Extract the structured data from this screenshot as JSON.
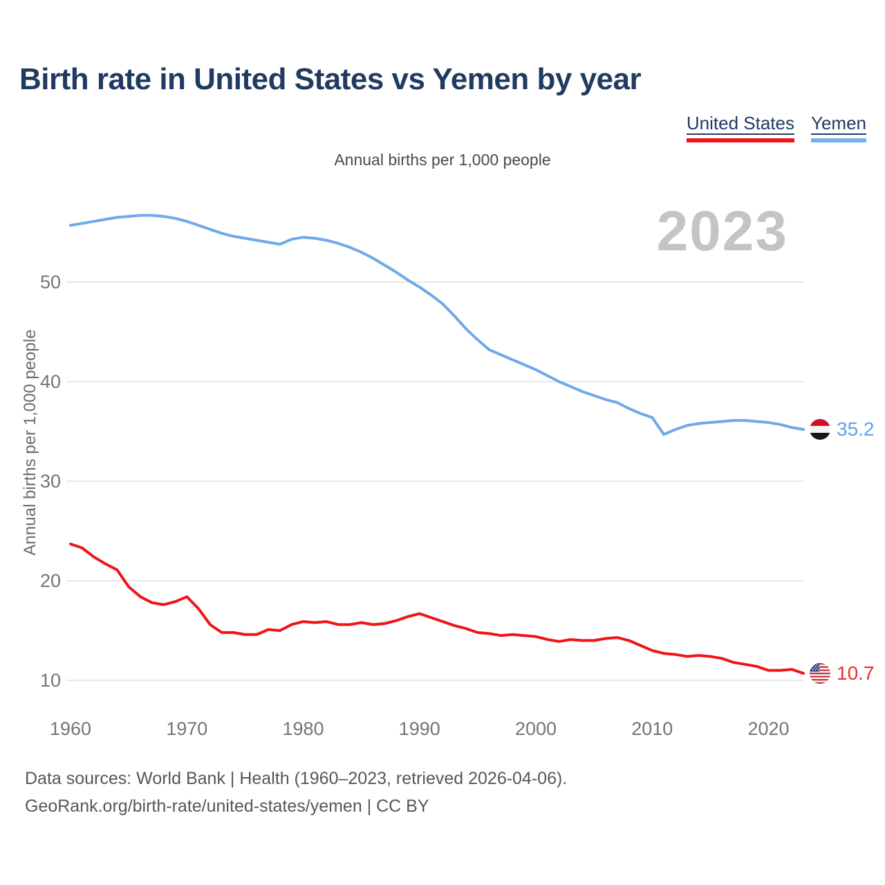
{
  "page": {
    "title": "Birth rate in United States vs Yemen by year",
    "subtitle": "Annual births per 1,000 people",
    "watermark": "2023"
  },
  "legend": {
    "items": [
      {
        "label": "United States",
        "color": "#f01418"
      },
      {
        "label": "Yemen",
        "color": "#74b2ea"
      }
    ]
  },
  "axes": {
    "y_label": "Annual births per 1,000 people",
    "y_ticks": [
      10,
      20,
      30,
      40,
      50
    ],
    "x_ticks": [
      1960,
      1970,
      1980,
      1990,
      2000,
      2010,
      2020
    ]
  },
  "end_labels": [
    {
      "series": "Yemen",
      "flag": "yemen-flag",
      "value": "35.2",
      "color": "#5fa1e6"
    },
    {
      "series": "United States",
      "flag": "us-flag",
      "value": "10.7",
      "color": "#ee2b2b"
    }
  ],
  "footer": {
    "line1": "Data sources: World Bank | Health (1960–2023, retrieved 2026-04-06).",
    "line2": "GeoRank.org/birth-rate/united-states/yemen | CC BY"
  },
  "chart_data": {
    "type": "line",
    "title": "Birth rate in United States vs Yemen by year",
    "subtitle": "Annual births per 1,000 people",
    "ylabel": "Annual births per 1,000 people",
    "xlim": [
      1960,
      2023
    ],
    "ylim": [
      10,
      50
    ],
    "grid": "horizontal",
    "legend_position": "top-right",
    "x": [
      1960,
      1961,
      1962,
      1963,
      1964,
      1965,
      1966,
      1967,
      1968,
      1969,
      1970,
      1971,
      1972,
      1973,
      1974,
      1975,
      1976,
      1977,
      1978,
      1979,
      1980,
      1981,
      1982,
      1983,
      1984,
      1985,
      1986,
      1987,
      1988,
      1989,
      1990,
      1991,
      1992,
      1993,
      1994,
      1995,
      1996,
      1997,
      1998,
      1999,
      2000,
      2001,
      2002,
      2003,
      2004,
      2005,
      2006,
      2007,
      2008,
      2009,
      2010,
      2011,
      2012,
      2013,
      2014,
      2015,
      2016,
      2017,
      2018,
      2019,
      2020,
      2021,
      2022,
      2023
    ],
    "series": [
      {
        "name": "United States",
        "color": "#f01418",
        "values": [
          23.7,
          23.3,
          22.4,
          21.7,
          21.1,
          19.4,
          18.4,
          17.8,
          17.6,
          17.9,
          18.4,
          17.2,
          15.6,
          14.8,
          14.8,
          14.6,
          14.6,
          15.1,
          15.0,
          15.6,
          15.9,
          15.8,
          15.9,
          15.6,
          15.6,
          15.8,
          15.6,
          15.7,
          16.0,
          16.4,
          16.7,
          16.3,
          15.9,
          15.5,
          15.2,
          14.8,
          14.7,
          14.5,
          14.6,
          14.5,
          14.4,
          14.1,
          13.9,
          14.1,
          14.0,
          14.0,
          14.2,
          14.3,
          14.0,
          13.5,
          13.0,
          12.7,
          12.6,
          12.4,
          12.5,
          12.4,
          12.2,
          11.8,
          11.6,
          11.4,
          11.0,
          11.0,
          11.1,
          10.7
        ]
      },
      {
        "name": "Yemen",
        "color": "#6fa9e8",
        "values": [
          55.7,
          55.9,
          56.1,
          56.3,
          56.5,
          56.6,
          56.7,
          56.7,
          56.6,
          56.4,
          56.1,
          55.7,
          55.3,
          54.9,
          54.6,
          54.4,
          54.2,
          54.0,
          53.8,
          54.3,
          54.5,
          54.4,
          54.2,
          53.9,
          53.5,
          53.0,
          52.4,
          51.7,
          51.0,
          50.2,
          49.5,
          48.7,
          47.8,
          46.6,
          45.3,
          44.2,
          43.2,
          42.7,
          42.2,
          41.7,
          41.2,
          40.6,
          40.0,
          39.5,
          39.0,
          38.6,
          38.2,
          37.9,
          37.3,
          36.8,
          36.4,
          34.7,
          35.2,
          35.6,
          35.8,
          35.9,
          36.0,
          36.1,
          36.1,
          36.0,
          35.9,
          35.7,
          35.4,
          35.2
        ]
      }
    ],
    "end_values": {
      "United States": 10.7,
      "Yemen": 35.2
    }
  }
}
